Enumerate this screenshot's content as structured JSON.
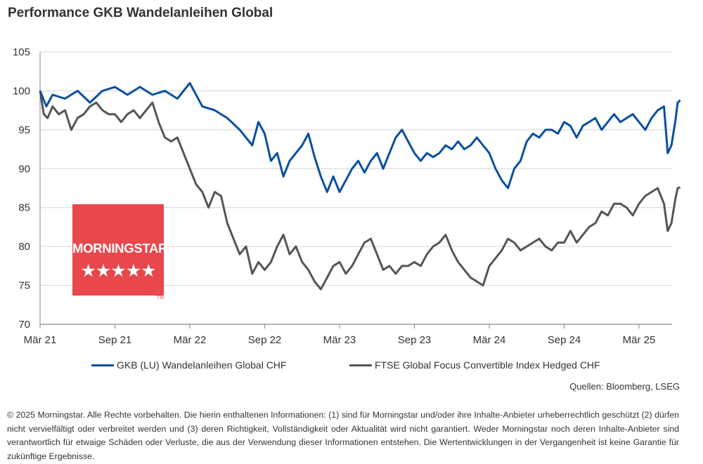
{
  "title": "Performance GKB Wandelanleihen Global",
  "chart_data": {
    "type": "line",
    "y_ticks": [
      70,
      75,
      80,
      85,
      90,
      95,
      100,
      105
    ],
    "ylim": [
      70,
      105
    ],
    "x_ticks": [
      "Mär 21",
      "Sep 21",
      "Mär 22",
      "Sep 22",
      "Mär 23",
      "Sep 23",
      "Mär 24",
      "Sep 24",
      "Mär 25"
    ],
    "x_range_months": [
      0,
      51.3
    ],
    "grid": "horizontal",
    "legend_position": "bottom",
    "series": [
      {
        "name": "GKB (LU) Wandelanleihen Global CHF",
        "color": "#0a4fa0",
        "points": [
          [
            0,
            100
          ],
          [
            0.5,
            98
          ],
          [
            1,
            99.5
          ],
          [
            2,
            99
          ],
          [
            3,
            100
          ],
          [
            4,
            98.5
          ],
          [
            5,
            100
          ],
          [
            6,
            100.5
          ],
          [
            7,
            99.5
          ],
          [
            8,
            100.5
          ],
          [
            9,
            99.5
          ],
          [
            10,
            100
          ],
          [
            11,
            99
          ],
          [
            12,
            101
          ],
          [
            13,
            98
          ],
          [
            14,
            97.5
          ],
          [
            15,
            96.5
          ],
          [
            16,
            95
          ],
          [
            17,
            93
          ],
          [
            17.5,
            96
          ],
          [
            18,
            94.5
          ],
          [
            18.5,
            91
          ],
          [
            19,
            92
          ],
          [
            19.5,
            89
          ],
          [
            20,
            91
          ],
          [
            20.5,
            92
          ],
          [
            21,
            93
          ],
          [
            21.5,
            94.5
          ],
          [
            22,
            91.5
          ],
          [
            22.5,
            89
          ],
          [
            23,
            87
          ],
          [
            23.5,
            89
          ],
          [
            24,
            87
          ],
          [
            24.5,
            88.5
          ],
          [
            25,
            90
          ],
          [
            25.5,
            91
          ],
          [
            26,
            89.5
          ],
          [
            26.5,
            91
          ],
          [
            27,
            92
          ],
          [
            27.5,
            90
          ],
          [
            28,
            92
          ],
          [
            28.5,
            94
          ],
          [
            29,
            95
          ],
          [
            29.5,
            93.5
          ],
          [
            30,
            92
          ],
          [
            30.5,
            91
          ],
          [
            31,
            92
          ],
          [
            31.5,
            91.5
          ],
          [
            32,
            92
          ],
          [
            32.5,
            93
          ],
          [
            33,
            92.5
          ],
          [
            33.5,
            93.5
          ],
          [
            34,
            92.5
          ],
          [
            34.5,
            93
          ],
          [
            35,
            94
          ],
          [
            35.5,
            93
          ],
          [
            36,
            92
          ],
          [
            36.5,
            90
          ],
          [
            37,
            88.5
          ],
          [
            37.5,
            87.5
          ],
          [
            38,
            90
          ],
          [
            38.5,
            91
          ],
          [
            39,
            93.5
          ],
          [
            39.5,
            94.5
          ],
          [
            40,
            94
          ],
          [
            40.5,
            95
          ],
          [
            41,
            95
          ],
          [
            41.5,
            94.5
          ],
          [
            42,
            96
          ],
          [
            42.5,
            95.5
          ],
          [
            43,
            94
          ],
          [
            43.5,
            95.5
          ],
          [
            44,
            96
          ],
          [
            44.5,
            96.5
          ],
          [
            45,
            95
          ],
          [
            45.5,
            96
          ],
          [
            46,
            97
          ],
          [
            46.5,
            96
          ],
          [
            47,
            96.5
          ],
          [
            47.5,
            97
          ],
          [
            48,
            96
          ],
          [
            48.5,
            95
          ],
          [
            49,
            96.5
          ],
          [
            49.5,
            97.5
          ],
          [
            50,
            98
          ],
          [
            50.3,
            92
          ],
          [
            50.6,
            93
          ],
          [
            50.9,
            96
          ],
          [
            51.1,
            98.5
          ],
          [
            51.3,
            98.8
          ]
        ]
      },
      {
        "name": "FTSE Global Focus Convertible Index Hedged CHF",
        "color": "#555555",
        "points": [
          [
            0,
            100
          ],
          [
            0.3,
            97
          ],
          [
            0.6,
            96.5
          ],
          [
            1,
            98
          ],
          [
            1.5,
            97
          ],
          [
            2,
            97.5
          ],
          [
            2.5,
            95
          ],
          [
            3,
            96.5
          ],
          [
            3.5,
            97
          ],
          [
            4,
            98
          ],
          [
            4.5,
            98.5
          ],
          [
            5,
            97.5
          ],
          [
            5.5,
            97
          ],
          [
            6,
            97
          ],
          [
            6.5,
            96
          ],
          [
            7,
            97
          ],
          [
            7.5,
            97.5
          ],
          [
            8,
            96.5
          ],
          [
            8.5,
            97.5
          ],
          [
            9,
            98.5
          ],
          [
            9.5,
            96
          ],
          [
            10,
            94
          ],
          [
            10.5,
            93.5
          ],
          [
            11,
            94
          ],
          [
            11.5,
            92
          ],
          [
            12,
            90
          ],
          [
            12.5,
            88
          ],
          [
            13,
            87
          ],
          [
            13.5,
            85
          ],
          [
            14,
            87
          ],
          [
            14.5,
            86.5
          ],
          [
            15,
            83
          ],
          [
            15.5,
            81
          ],
          [
            16,
            79
          ],
          [
            16.5,
            80
          ],
          [
            17,
            76.5
          ],
          [
            17.5,
            78
          ],
          [
            18,
            77
          ],
          [
            18.5,
            78
          ],
          [
            19,
            80
          ],
          [
            19.5,
            81.5
          ],
          [
            20,
            79
          ],
          [
            20.5,
            80
          ],
          [
            21,
            78
          ],
          [
            21.5,
            77
          ],
          [
            22,
            75.5
          ],
          [
            22.5,
            74.5
          ],
          [
            23,
            76
          ],
          [
            23.5,
            77.5
          ],
          [
            24,
            78
          ],
          [
            24.5,
            76.5
          ],
          [
            25,
            77.5
          ],
          [
            25.5,
            79
          ],
          [
            26,
            80.5
          ],
          [
            26.5,
            81
          ],
          [
            27,
            79
          ],
          [
            27.5,
            77
          ],
          [
            28,
            77.5
          ],
          [
            28.5,
            76.5
          ],
          [
            29,
            77.5
          ],
          [
            29.5,
            77.5
          ],
          [
            30,
            78
          ],
          [
            30.5,
            77.5
          ],
          [
            31,
            79
          ],
          [
            31.5,
            80
          ],
          [
            32,
            80.5
          ],
          [
            32.5,
            81.5
          ],
          [
            33,
            79.5
          ],
          [
            33.5,
            78
          ],
          [
            34,
            77
          ],
          [
            34.5,
            76
          ],
          [
            35,
            75.5
          ],
          [
            35.5,
            75
          ],
          [
            36,
            77.5
          ],
          [
            36.5,
            78.5
          ],
          [
            37,
            79.5
          ],
          [
            37.5,
            81
          ],
          [
            38,
            80.5
          ],
          [
            38.5,
            79.5
          ],
          [
            39,
            80
          ],
          [
            39.5,
            80.5
          ],
          [
            40,
            81
          ],
          [
            40.5,
            80
          ],
          [
            41,
            79.5
          ],
          [
            41.5,
            80.5
          ],
          [
            42,
            80.5
          ],
          [
            42.5,
            82
          ],
          [
            43,
            80.5
          ],
          [
            43.5,
            81.5
          ],
          [
            44,
            82.5
          ],
          [
            44.5,
            83
          ],
          [
            45,
            84.5
          ],
          [
            45.5,
            84
          ],
          [
            46,
            85.5
          ],
          [
            46.5,
            85.5
          ],
          [
            47,
            85
          ],
          [
            47.5,
            84
          ],
          [
            48,
            85.5
          ],
          [
            48.5,
            86.5
          ],
          [
            49,
            87
          ],
          [
            49.5,
            87.5
          ],
          [
            50,
            85.5
          ],
          [
            50.3,
            82
          ],
          [
            50.6,
            83
          ],
          [
            50.9,
            86
          ],
          [
            51.1,
            87.5
          ],
          [
            51.3,
            87.6
          ]
        ]
      }
    ]
  },
  "source": "Quellen: Bloomberg, LSEG",
  "badge": {
    "brand": "MORNINGSTAR",
    "stars": "★★★★★",
    "trademark": "TM",
    "color": "#e8474c"
  },
  "disclaimer": "© 2025 Morningstar. Alle Rechte vorbehalten. Die hierin enthaltenen Informationen: (1) sind für Morningstar und/oder ihre Inhalte-Anbieter urheberrechtlich geschützt (2) dürfen nicht vervielfältigt oder verbreitet werden und (3) deren Richtigkeit, Vollständigkeit oder Aktualität wird nicht garantiert. Weder Morningstar noch deren Inhalte-Anbieter sind verantwortlich für etwaige Schäden oder Verluste, die aus der Verwendung dieser Informationen entstehen. Die Wertentwicklungen in der Vergangenheit ist keine Garantie für zukünftige Ergebnisse."
}
